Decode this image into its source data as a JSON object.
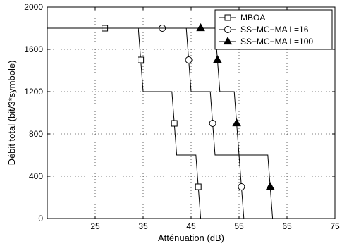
{
  "chart_data": {
    "type": "line",
    "xlabel": "Atténuation (dB)",
    "ylabel": "Débit total (bit/3*symbole)",
    "xlim": [
      15,
      75
    ],
    "ylim": [
      0,
      2000
    ],
    "xticks": [
      25,
      35,
      45,
      55,
      65,
      75
    ],
    "yticks": [
      0,
      400,
      800,
      1200,
      1600,
      2000
    ],
    "grid": true,
    "legend_position": "top-right",
    "series": [
      {
        "name": "MBOA",
        "marker": "square",
        "x": [
          15,
          34,
          35,
          41,
          42,
          46,
          47
        ],
        "y": [
          1800,
          1800,
          1200,
          1200,
          600,
          600,
          0
        ],
        "markers": [
          [
            27,
            1800
          ],
          [
            34.5,
            1500
          ],
          [
            41.5,
            900
          ],
          [
            46.5,
            300
          ]
        ]
      },
      {
        "name": "SS−MC−MA L=16",
        "marker": "circle",
        "x": [
          15,
          44,
          45,
          49,
          50,
          55,
          56
        ],
        "y": [
          1800,
          1800,
          1200,
          1200,
          600,
          600,
          0
        ],
        "markers": [
          [
            39,
            1800
          ],
          [
            44.5,
            1500
          ],
          [
            49.5,
            900
          ],
          [
            55.5,
            300
          ]
        ]
      },
      {
        "name": "SS−MC−MA L=100",
        "marker": "triangle",
        "x": [
          15,
          50,
          51,
          54,
          55,
          61,
          62
        ],
        "y": [
          1800,
          1800,
          1200,
          1200,
          600,
          600,
          0
        ],
        "markers": [
          [
            47,
            1800
          ],
          [
            50.5,
            1500
          ],
          [
            54.5,
            900
          ],
          [
            61.5,
            300
          ]
        ]
      }
    ]
  }
}
